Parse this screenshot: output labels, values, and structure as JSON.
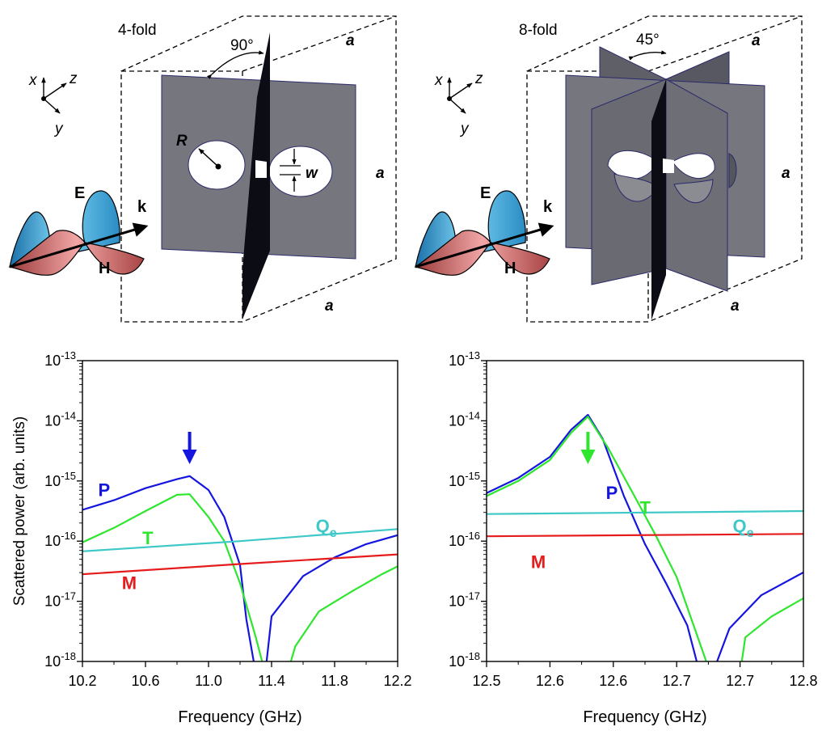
{
  "schematics": [
    {
      "title": "4-fold",
      "angle_label": "90°",
      "dimension_label": "a",
      "radius_label": "R",
      "gap_label": "w",
      "axes": {
        "x": "x",
        "y": "y",
        "z": "z"
      },
      "wave": {
        "E": "E",
        "H": "H",
        "k": "k"
      }
    },
    {
      "title": "8-fold",
      "angle_label": "45°",
      "dimension_label": "a",
      "axes": {
        "x": "x",
        "y": "y",
        "z": "z"
      },
      "wave": {
        "E": "E",
        "H": "H",
        "k": "k"
      }
    }
  ],
  "chart_data": [
    {
      "type": "line",
      "xlabel": "Frequency (GHz)",
      "ylabel": "Scattered power (arb. units)",
      "xlim": [
        10.2,
        12.2
      ],
      "ylim_exponent": [
        -18,
        -13
      ],
      "y_scale": "log",
      "x_ticks": [
        "10.2",
        "10.6",
        "11.0",
        "11.4",
        "11.8",
        "12.2"
      ],
      "y_ticks": [
        -18,
        -17,
        -16,
        -15,
        -14,
        -13
      ],
      "arrow": {
        "x": 10.88,
        "color": "#1515e0"
      },
      "series": [
        {
          "name": "P",
          "color": "#1515e0",
          "label_at": [
            10.3,
            -15.25
          ],
          "x": [
            10.2,
            10.4,
            10.6,
            10.8,
            10.88,
            11.0,
            11.1,
            11.2,
            11.24,
            11.3,
            11.36,
            11.4,
            11.6,
            11.8,
            12.0,
            12.2
          ],
          "y": [
            -15.48,
            -15.32,
            -15.12,
            -14.97,
            -14.92,
            -15.15,
            -15.6,
            -16.4,
            -17.3,
            -18.2,
            -18.2,
            -17.25,
            -16.58,
            -16.27,
            -16.05,
            -15.9
          ]
        },
        {
          "name": "T",
          "color": "#2ee62e",
          "label_at": [
            10.58,
            -16.05
          ],
          "x": [
            10.2,
            10.4,
            10.6,
            10.8,
            10.88,
            11.0,
            11.1,
            11.2,
            11.3,
            11.36,
            11.5,
            11.55,
            11.7,
            11.9,
            12.1,
            12.2
          ],
          "y": [
            -16.02,
            -15.78,
            -15.5,
            -15.23,
            -15.22,
            -15.6,
            -16.0,
            -16.7,
            -17.6,
            -18.2,
            -18.2,
            -17.75,
            -17.17,
            -16.85,
            -16.55,
            -16.42
          ]
        },
        {
          "name": "Qe",
          "color": "#3ec8c8",
          "label_at": [
            11.68,
            -15.85
          ],
          "x": [
            10.2,
            11.2,
            12.2
          ],
          "y": [
            -16.17,
            -16.0,
            -15.8
          ]
        },
        {
          "name": "M",
          "color": "#e61c1c",
          "label_at": [
            10.45,
            -16.8
          ],
          "x": [
            10.2,
            11.2,
            12.2
          ],
          "y": [
            -16.55,
            -16.38,
            -16.22
          ]
        }
      ]
    },
    {
      "type": "line",
      "xlabel": "Frequency (GHz)",
      "ylabel": "",
      "xlim": [
        12.5,
        12.8
      ],
      "ylim_exponent": [
        -18,
        -13
      ],
      "y_scale": "log",
      "x_ticks": [
        "12.5",
        "12.6",
        "12.6",
        "12.7",
        "12.7",
        "12.8"
      ],
      "y_ticks": [
        -18,
        -17,
        -16,
        -15,
        -14,
        -13
      ],
      "arrow": {
        "x": 12.596,
        "color": "#2ee62e"
      },
      "series": [
        {
          "name": "P",
          "color": "#1515e0",
          "label_at": [
            12.613,
            -15.3
          ],
          "x": [
            12.5,
            12.53,
            12.56,
            12.58,
            12.596,
            12.61,
            12.63,
            12.65,
            12.67,
            12.69,
            12.702,
            12.714,
            12.73,
            12.76,
            12.8
          ],
          "y": [
            -15.2,
            -14.95,
            -14.6,
            -14.15,
            -13.9,
            -14.3,
            -15.25,
            -16.05,
            -16.7,
            -17.4,
            -18.2,
            -18.2,
            -17.45,
            -16.9,
            -16.52
          ]
        },
        {
          "name": "T",
          "color": "#2ee62e",
          "label_at": [
            12.645,
            -15.55
          ],
          "x": [
            12.5,
            12.53,
            12.56,
            12.58,
            12.596,
            12.615,
            12.64,
            12.66,
            12.68,
            12.69,
            12.712,
            12.74,
            12.745,
            12.77,
            12.8
          ],
          "y": [
            -15.25,
            -15.0,
            -14.65,
            -14.2,
            -13.93,
            -14.45,
            -15.25,
            -15.9,
            -16.6,
            -17.1,
            -18.2,
            -18.2,
            -17.6,
            -17.25,
            -16.95
          ]
        },
        {
          "name": "Qe",
          "color": "#3ec8c8",
          "label_at": [
            12.733,
            -15.85
          ],
          "x": [
            12.5,
            12.8
          ],
          "y": [
            -15.55,
            -15.5
          ]
        },
        {
          "name": "M",
          "color": "#e61c1c",
          "label_at": [
            12.542,
            -16.45
          ],
          "x": [
            12.5,
            12.8
          ],
          "y": [
            -15.92,
            -15.88
          ]
        }
      ]
    }
  ]
}
